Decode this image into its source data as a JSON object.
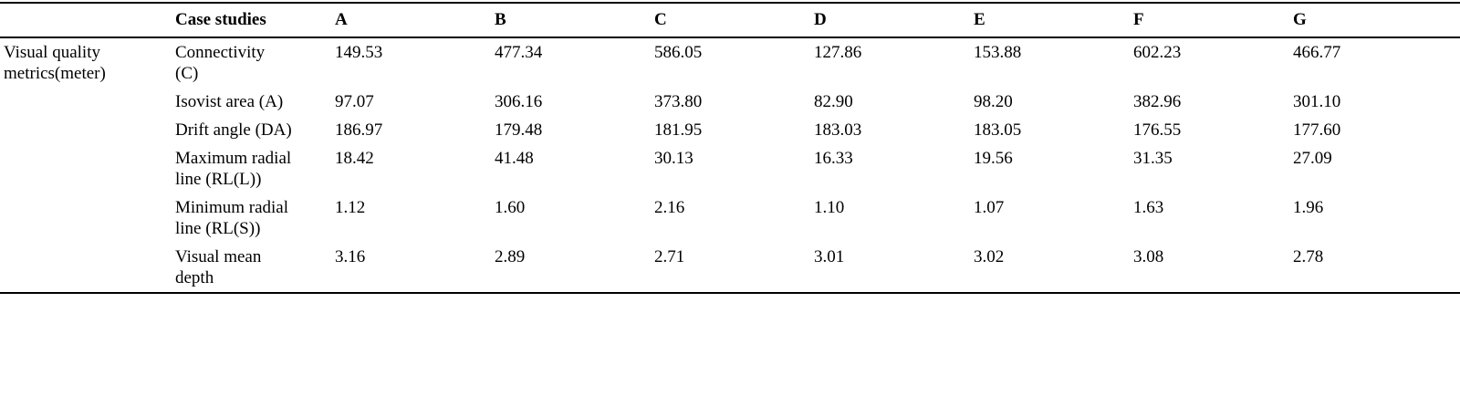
{
  "table": {
    "header": {
      "stub": "Case studies",
      "columns": [
        "A",
        "B",
        "C",
        "D",
        "E",
        "F",
        "G"
      ]
    },
    "group": "Visual quality metrics(meter)",
    "rows": [
      {
        "label": "Connectivity (C)",
        "values": [
          "149.53",
          "477.34",
          "586.05",
          "127.86",
          "153.88",
          "602.23",
          "466.77"
        ]
      },
      {
        "label": "Isovist area (A)",
        "values": [
          "97.07",
          "306.16",
          "373.80",
          "82.90",
          "98.20",
          "382.96",
          "301.10"
        ]
      },
      {
        "label": "Drift angle (DA)",
        "values": [
          "186.97",
          "179.48",
          "181.95",
          "183.03",
          "183.05",
          "176.55",
          "177.60"
        ]
      },
      {
        "label": "Maximum radial line (RL(L))",
        "values": [
          "18.42",
          "41.48",
          "30.13",
          "16.33",
          "19.56",
          "31.35",
          "27.09"
        ]
      },
      {
        "label": "Minimum radial line (RL(S))",
        "values": [
          "1.12",
          "1.60",
          "2.16",
          "1.10",
          "1.07",
          "1.63",
          "1.96"
        ]
      },
      {
        "label": "Visual mean depth",
        "values": [
          "3.16",
          "2.89",
          "2.71",
          "3.01",
          "3.02",
          "3.08",
          "2.78"
        ]
      }
    ]
  }
}
